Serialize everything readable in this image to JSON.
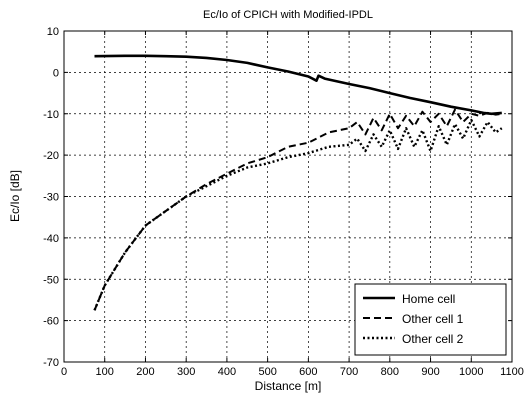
{
  "chart_data": {
    "type": "line",
    "title": "Ec/Io of CPICH with Modified-IPDL",
    "xlabel": "Distance [m]",
    "ylabel": "Ec/Io [dB]",
    "xlim": [
      0,
      1100
    ],
    "ylim": [
      -70,
      10
    ],
    "xticks": [
      0,
      100,
      200,
      300,
      400,
      500,
      600,
      700,
      800,
      900,
      1000,
      1100
    ],
    "yticks": [
      10,
      0,
      -10,
      -20,
      -30,
      -40,
      -50,
      -60,
      -70
    ],
    "grid": true,
    "legend_position": "bottom-right",
    "series": [
      {
        "name": "Home cell",
        "line_style": "solid",
        "x": [
          75,
          150,
          200,
          250,
          300,
          350,
          400,
          450,
          500,
          550,
          600,
          620,
          625,
          640,
          700,
          750,
          800,
          850,
          900,
          950,
          1000,
          1030,
          1050,
          1075
        ],
        "y": [
          3.9,
          4.0,
          4.0,
          3.9,
          3.8,
          3.5,
          3.0,
          2.3,
          1.2,
          0.2,
          -1.0,
          -2.0,
          -0.8,
          -1.5,
          -2.8,
          -3.8,
          -5.0,
          -6.2,
          -7.2,
          -8.3,
          -9.2,
          -9.8,
          -10.0,
          -9.8
        ]
      },
      {
        "name": "Other cell 1",
        "line_style": "dashed",
        "x": [
          75,
          100,
          150,
          200,
          250,
          300,
          350,
          400,
          450,
          500,
          550,
          600,
          650,
          700,
          720,
          740,
          760,
          780,
          800,
          820,
          840,
          860,
          880,
          900,
          920,
          940,
          960,
          980,
          1000,
          1020,
          1040,
          1060,
          1075
        ],
        "y": [
          -57.5,
          -51.5,
          -43.5,
          -37.0,
          -33.5,
          -30.0,
          -27.0,
          -24.5,
          -22.0,
          -20.5,
          -18.0,
          -17.0,
          -14.5,
          -13.5,
          -12.0,
          -15.0,
          -11.0,
          -14.0,
          -10.0,
          -13.5,
          -10.5,
          -13.0,
          -9.5,
          -12.0,
          -10.0,
          -13.0,
          -9.0,
          -12.0,
          -10.0,
          -10.5,
          -9.8,
          -10.2,
          -10.0
        ]
      },
      {
        "name": "Other cell 2",
        "line_style": "dotted",
        "x": [
          75,
          100,
          150,
          200,
          250,
          300,
          350,
          400,
          450,
          500,
          550,
          600,
          650,
          700,
          720,
          740,
          760,
          780,
          800,
          820,
          840,
          860,
          880,
          900,
          920,
          940,
          960,
          980,
          1000,
          1020,
          1040,
          1060,
          1075
        ],
        "y": [
          -57.5,
          -51.5,
          -43.5,
          -37.0,
          -33.5,
          -30.0,
          -27.5,
          -25.0,
          -23.0,
          -22.0,
          -20.5,
          -19.5,
          -18.0,
          -17.5,
          -16.0,
          -19.0,
          -15.0,
          -18.0,
          -14.0,
          -18.5,
          -13.5,
          -18.0,
          -14.0,
          -19.0,
          -13.0,
          -17.5,
          -12.5,
          -16.0,
          -11.5,
          -15.5,
          -12.0,
          -14.5,
          -13.5
        ]
      }
    ]
  }
}
